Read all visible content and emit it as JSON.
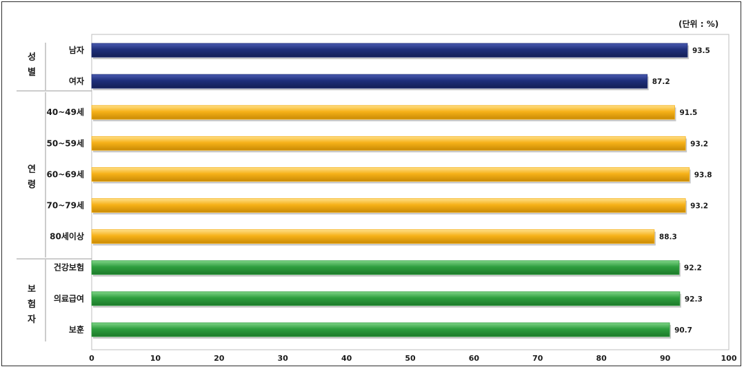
{
  "unit_label": "(단위 : %)",
  "groups": [
    {
      "label_chars": [
        "성",
        "별"
      ]
    },
    {
      "label_chars": [
        "연",
        "령"
      ]
    },
    {
      "label_chars": [
        "보",
        "험",
        "자"
      ]
    }
  ],
  "colors": {
    "navy": "#1f2f7a",
    "orange": "#f6b118",
    "green": "#2e9e3e"
  },
  "chart_data": {
    "type": "bar",
    "orientation": "horizontal",
    "categories": [
      "남자",
      "여자",
      "40~49세",
      "50~59세",
      "60~69세",
      "70~79세",
      "80세이상",
      "건강보험",
      "의료급여",
      "보훈"
    ],
    "values": [
      93.5,
      87.2,
      91.5,
      93.2,
      93.8,
      93.2,
      88.3,
      92.2,
      92.3,
      90.7
    ],
    "value_labels": [
      "93.5",
      "87.2",
      "91.5",
      "93.2",
      "93.8",
      "93.2",
      "88.3",
      "92.2",
      "92.3",
      "90.7"
    ],
    "bar_colors": [
      "navy",
      "navy",
      "orange",
      "orange",
      "orange",
      "orange",
      "orange",
      "green",
      "green",
      "green"
    ],
    "xlim": [
      0,
      100
    ],
    "xticks": [
      0,
      10,
      20,
      30,
      40,
      50,
      60,
      70,
      80,
      90,
      100
    ],
    "grid": false,
    "legend": "none"
  }
}
